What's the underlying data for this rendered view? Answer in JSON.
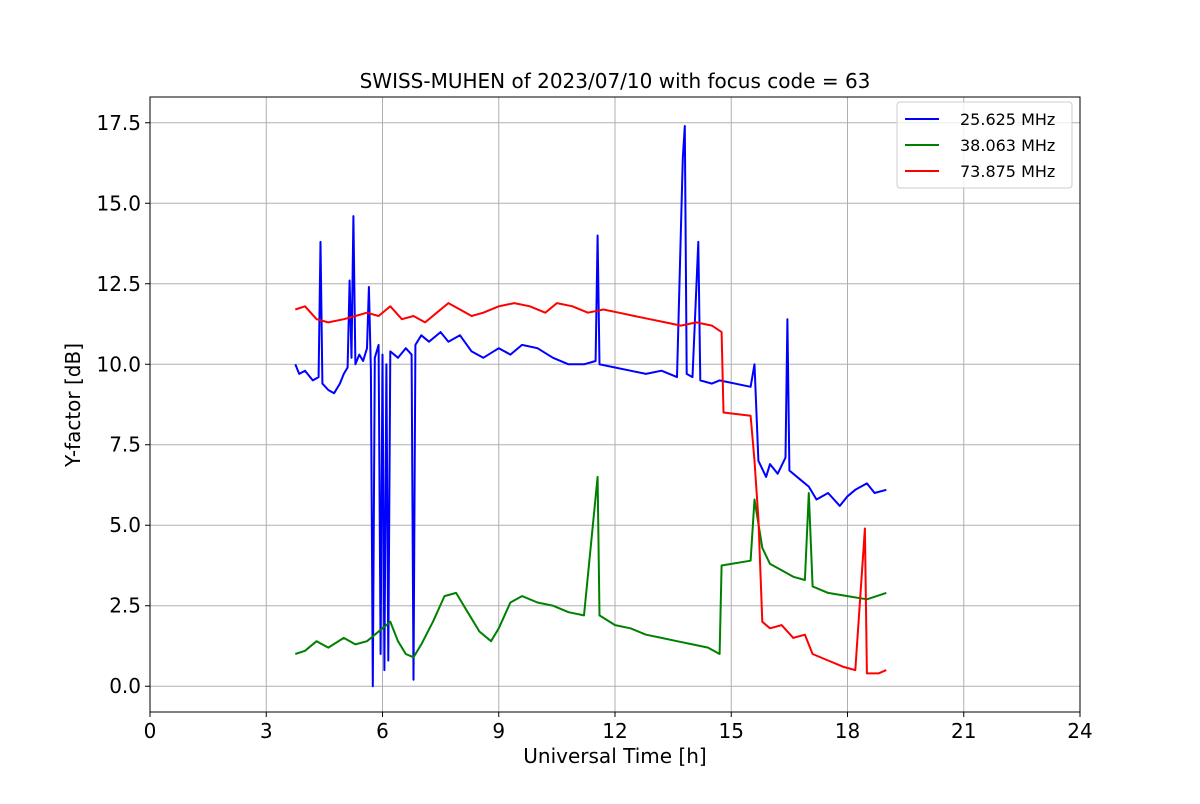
{
  "chart_data": {
    "type": "line",
    "title": "SWISS-MUHEN of 2023/07/10 with focus code = 63",
    "xlabel": "Universal Time [h]",
    "ylabel": "Y-factor [dB]",
    "xlim": [
      0,
      24
    ],
    "ylim": [
      -0.8,
      18.3
    ],
    "xticks": [
      0,
      3,
      6,
      9,
      12,
      15,
      18,
      21,
      24
    ],
    "xtick_labels": [
      "0",
      "3",
      "6",
      "9",
      "12",
      "15",
      "18",
      "21",
      "24"
    ],
    "yticks": [
      0,
      2.5,
      5,
      7.5,
      10,
      12.5,
      15,
      17.5
    ],
    "ytick_labels": [
      "0.0",
      "2.5",
      "5.0",
      "7.5",
      "10.0",
      "12.5",
      "15.0",
      "17.5"
    ],
    "grid": true,
    "legend_position": "upper right",
    "series": [
      {
        "name": "25.625 MHz",
        "color": "#0000ff",
        "points": [
          [
            3.75,
            10.0
          ],
          [
            3.85,
            9.7
          ],
          [
            4.0,
            9.8
          ],
          [
            4.2,
            9.5
          ],
          [
            4.35,
            9.6
          ],
          [
            4.4,
            13.8
          ],
          [
            4.45,
            9.4
          ],
          [
            4.6,
            9.2
          ],
          [
            4.75,
            9.1
          ],
          [
            4.9,
            9.4
          ],
          [
            5.0,
            9.7
          ],
          [
            5.1,
            9.9
          ],
          [
            5.15,
            12.6
          ],
          [
            5.2,
            10.2
          ],
          [
            5.25,
            14.6
          ],
          [
            5.3,
            10.0
          ],
          [
            5.4,
            10.3
          ],
          [
            5.5,
            10.1
          ],
          [
            5.6,
            10.5
          ],
          [
            5.65,
            12.4
          ],
          [
            5.7,
            9.8
          ],
          [
            5.75,
            0.0
          ],
          [
            5.8,
            10.2
          ],
          [
            5.9,
            10.6
          ],
          [
            5.95,
            1.0
          ],
          [
            6.0,
            10.3
          ],
          [
            6.05,
            0.5
          ],
          [
            6.1,
            10.0
          ],
          [
            6.15,
            0.8
          ],
          [
            6.2,
            10.4
          ],
          [
            6.4,
            10.2
          ],
          [
            6.6,
            10.5
          ],
          [
            6.75,
            10.3
          ],
          [
            6.8,
            0.2
          ],
          [
            6.85,
            10.6
          ],
          [
            7.0,
            10.9
          ],
          [
            7.2,
            10.7
          ],
          [
            7.5,
            11.0
          ],
          [
            7.7,
            10.7
          ],
          [
            8.0,
            10.9
          ],
          [
            8.3,
            10.4
          ],
          [
            8.6,
            10.2
          ],
          [
            9.0,
            10.5
          ],
          [
            9.3,
            10.3
          ],
          [
            9.6,
            10.6
          ],
          [
            10.0,
            10.5
          ],
          [
            10.4,
            10.2
          ],
          [
            10.8,
            10.0
          ],
          [
            11.2,
            10.0
          ],
          [
            11.5,
            10.1
          ],
          [
            11.55,
            14.0
          ],
          [
            11.6,
            10.0
          ],
          [
            12.0,
            9.9
          ],
          [
            12.4,
            9.8
          ],
          [
            12.8,
            9.7
          ],
          [
            13.2,
            9.8
          ],
          [
            13.6,
            9.6
          ],
          [
            13.75,
            16.4
          ],
          [
            13.8,
            17.4
          ],
          [
            13.85,
            9.7
          ],
          [
            14.0,
            9.6
          ],
          [
            14.15,
            13.8
          ],
          [
            14.2,
            9.5
          ],
          [
            14.5,
            9.4
          ],
          [
            14.7,
            9.5
          ],
          [
            15.5,
            9.3
          ],
          [
            15.6,
            10.0
          ],
          [
            15.7,
            7.0
          ],
          [
            15.9,
            6.5
          ],
          [
            16.0,
            6.9
          ],
          [
            16.2,
            6.6
          ],
          [
            16.4,
            7.1
          ],
          [
            16.45,
            11.4
          ],
          [
            16.5,
            6.7
          ],
          [
            16.8,
            6.4
          ],
          [
            17.0,
            6.2
          ],
          [
            17.2,
            5.8
          ],
          [
            17.5,
            6.0
          ],
          [
            17.8,
            5.6
          ],
          [
            18.0,
            5.9
          ],
          [
            18.2,
            6.1
          ],
          [
            18.5,
            6.3
          ],
          [
            18.7,
            6.0
          ],
          [
            19.0,
            6.1
          ]
        ]
      },
      {
        "name": "38.063 MHz",
        "color": "#008000",
        "points": [
          [
            3.75,
            1.0
          ],
          [
            4.0,
            1.1
          ],
          [
            4.3,
            1.4
          ],
          [
            4.6,
            1.2
          ],
          [
            5.0,
            1.5
          ],
          [
            5.3,
            1.3
          ],
          [
            5.6,
            1.4
          ],
          [
            5.8,
            1.6
          ],
          [
            6.0,
            1.8
          ],
          [
            6.2,
            2.0
          ],
          [
            6.4,
            1.4
          ],
          [
            6.6,
            1.0
          ],
          [
            6.8,
            0.9
          ],
          [
            7.0,
            1.3
          ],
          [
            7.3,
            2.0
          ],
          [
            7.6,
            2.8
          ],
          [
            7.9,
            2.9
          ],
          [
            8.2,
            2.3
          ],
          [
            8.5,
            1.7
          ],
          [
            8.8,
            1.4
          ],
          [
            9.0,
            1.8
          ],
          [
            9.3,
            2.6
          ],
          [
            9.6,
            2.8
          ],
          [
            10.0,
            2.6
          ],
          [
            10.4,
            2.5
          ],
          [
            10.8,
            2.3
          ],
          [
            11.2,
            2.2
          ],
          [
            11.55,
            6.5
          ],
          [
            11.6,
            2.2
          ],
          [
            12.0,
            1.9
          ],
          [
            12.4,
            1.8
          ],
          [
            12.8,
            1.6
          ],
          [
            13.2,
            1.5
          ],
          [
            13.6,
            1.4
          ],
          [
            14.0,
            1.3
          ],
          [
            14.4,
            1.2
          ],
          [
            14.7,
            1.0
          ],
          [
            14.75,
            3.75
          ],
          [
            15.5,
            3.9
          ],
          [
            15.6,
            5.8
          ],
          [
            15.8,
            4.3
          ],
          [
            16.0,
            3.8
          ],
          [
            16.3,
            3.6
          ],
          [
            16.6,
            3.4
          ],
          [
            16.9,
            3.3
          ],
          [
            17.0,
            6.0
          ],
          [
            17.1,
            3.1
          ],
          [
            17.5,
            2.9
          ],
          [
            18.0,
            2.8
          ],
          [
            18.5,
            2.7
          ],
          [
            19.0,
            2.9
          ]
        ]
      },
      {
        "name": "73.875 MHz",
        "color": "#ff0000",
        "points": [
          [
            3.75,
            11.7
          ],
          [
            4.0,
            11.8
          ],
          [
            4.3,
            11.4
          ],
          [
            4.6,
            11.3
          ],
          [
            5.0,
            11.4
          ],
          [
            5.3,
            11.5
          ],
          [
            5.6,
            11.6
          ],
          [
            5.9,
            11.5
          ],
          [
            6.2,
            11.8
          ],
          [
            6.5,
            11.4
          ],
          [
            6.8,
            11.5
          ],
          [
            7.1,
            11.3
          ],
          [
            7.4,
            11.6
          ],
          [
            7.7,
            11.9
          ],
          [
            8.0,
            11.7
          ],
          [
            8.3,
            11.5
          ],
          [
            8.6,
            11.6
          ],
          [
            9.0,
            11.8
          ],
          [
            9.4,
            11.9
          ],
          [
            9.8,
            11.8
          ],
          [
            10.2,
            11.6
          ],
          [
            10.5,
            11.9
          ],
          [
            10.9,
            11.8
          ],
          [
            11.3,
            11.6
          ],
          [
            11.7,
            11.7
          ],
          [
            12.1,
            11.6
          ],
          [
            12.5,
            11.5
          ],
          [
            12.9,
            11.4
          ],
          [
            13.3,
            11.3
          ],
          [
            13.7,
            11.2
          ],
          [
            14.1,
            11.3
          ],
          [
            14.5,
            11.2
          ],
          [
            14.75,
            11.0
          ],
          [
            14.8,
            8.5
          ],
          [
            15.5,
            8.4
          ],
          [
            15.6,
            7.0
          ],
          [
            15.7,
            5.2
          ],
          [
            15.8,
            2.0
          ],
          [
            16.0,
            1.8
          ],
          [
            16.3,
            1.9
          ],
          [
            16.6,
            1.5
          ],
          [
            16.9,
            1.6
          ],
          [
            17.1,
            1.0
          ],
          [
            17.5,
            0.8
          ],
          [
            17.9,
            0.6
          ],
          [
            18.2,
            0.5
          ],
          [
            18.45,
            4.9
          ],
          [
            18.5,
            0.4
          ],
          [
            18.8,
            0.4
          ],
          [
            19.0,
            0.5
          ]
        ]
      }
    ]
  }
}
